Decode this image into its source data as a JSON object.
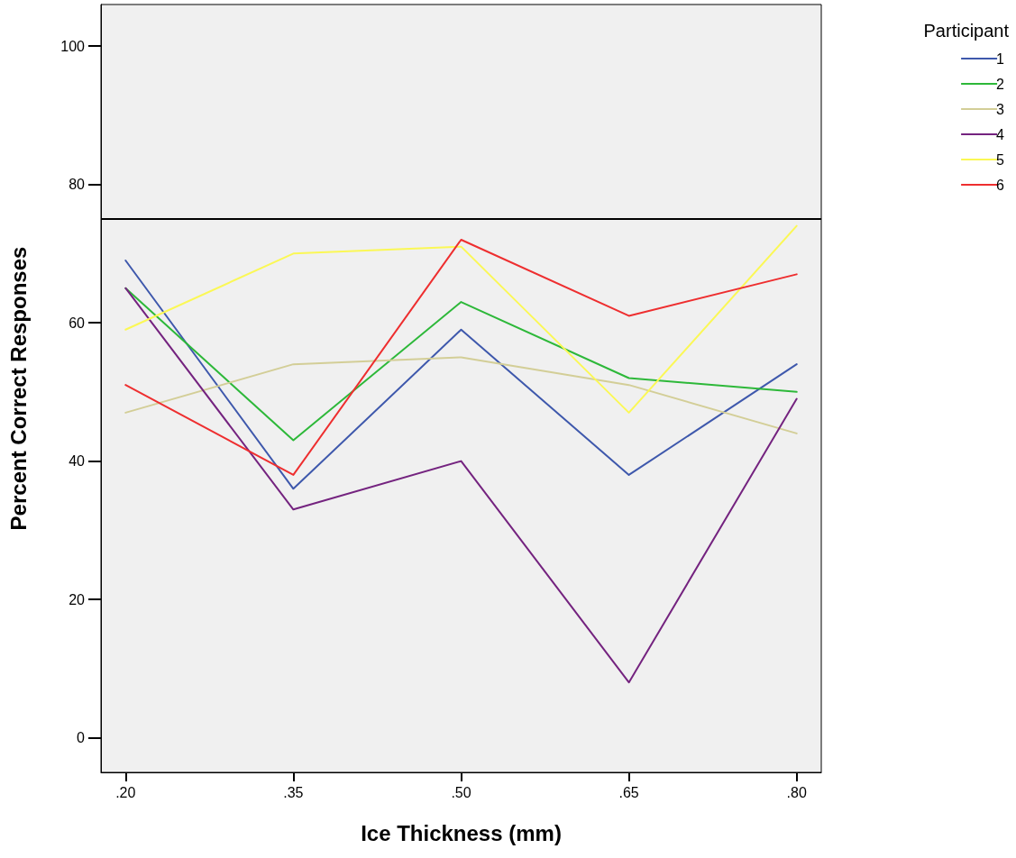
{
  "chart_data": {
    "type": "line",
    "xlabel": "Ice Thickness (mm)",
    "ylabel": "Percent Correct Responses",
    "legend_title": "Participant",
    "legend": "top right",
    "grid": false,
    "marker": "none",
    "line_style": "solid",
    "x": [
      0.2,
      0.35,
      0.5,
      0.65,
      0.8
    ],
    "xlim": [
      0.178,
      0.822
    ],
    "xticks": [
      {
        "value": 0.2,
        "label": ".20"
      },
      {
        "value": 0.35,
        "label": ".35"
      },
      {
        "value": 0.5,
        "label": ".50"
      },
      {
        "value": 0.65,
        "label": ".65"
      },
      {
        "value": 0.8,
        "label": ".80"
      }
    ],
    "ylim": [
      -5,
      106
    ],
    "yticks": [
      0,
      20,
      40,
      60,
      80,
      100
    ],
    "series": [
      {
        "name": "1",
        "color": "#3e58ac",
        "values": [
          69,
          36,
          59,
          38,
          54
        ]
      },
      {
        "name": "2",
        "color": "#2db839",
        "values": [
          65,
          43,
          63,
          52,
          50
        ]
      },
      {
        "name": "3",
        "color": "#d3ce97",
        "values": [
          47,
          54,
          55,
          51,
          44
        ]
      },
      {
        "name": "4",
        "color": "#74237f",
        "values": [
          65,
          33,
          40,
          8,
          49
        ]
      },
      {
        "name": "5",
        "color": "#fbf855",
        "values": [
          59,
          70,
          71,
          47,
          74
        ]
      },
      {
        "name": "6",
        "color": "#ee2e2f",
        "values": [
          51,
          38,
          72,
          61,
          67
        ]
      }
    ],
    "ref_lines": [
      {
        "axis": "y",
        "value": 75,
        "color": "#000000"
      }
    ]
  }
}
